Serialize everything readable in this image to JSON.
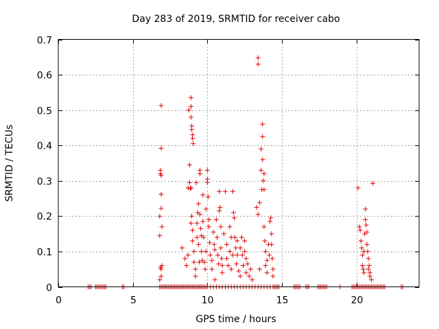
{
  "chart_data": {
    "type": "scatter",
    "title": "Day 283 of 2019, SRMTID for receiver cabo",
    "xlabel": "GPS time / hours",
    "ylabel": "SRMTID / TECUs",
    "xlim": [
      0,
      24.2
    ],
    "ylim": [
      0,
      0.7
    ],
    "xticks": [
      0,
      5,
      10,
      15,
      20
    ],
    "xtick_labels": [
      "0",
      "5",
      "10",
      "15",
      "20"
    ],
    "yticks": [
      0,
      0.1,
      0.2,
      0.3,
      0.4,
      0.5,
      0.6,
      0.7
    ],
    "ytick_labels": [
      "0",
      "0.1",
      "0.2",
      "0.3",
      "0.4",
      "0.5",
      "0.6",
      "0.7"
    ],
    "grid": true,
    "marker": "+",
    "series": [
      {
        "name": "SRMTID",
        "color": "#e00000",
        "points": [
          [
            2.0,
            0
          ],
          [
            2.1,
            0
          ],
          [
            2.2,
            0
          ],
          [
            2.5,
            0
          ],
          [
            2.6,
            0
          ],
          [
            2.7,
            0
          ],
          [
            2.8,
            0
          ],
          [
            2.9,
            0
          ],
          [
            3.0,
            0
          ],
          [
            3.1,
            0
          ],
          [
            3.2,
            0
          ],
          [
            4.3,
            0
          ],
          [
            4.4,
            0
          ],
          [
            6.8,
            0
          ],
          [
            6.9,
            0
          ],
          [
            7.0,
            0
          ],
          [
            7.1,
            0
          ],
          [
            7.2,
            0
          ],
          [
            7.3,
            0
          ],
          [
            7.4,
            0
          ],
          [
            7.5,
            0
          ],
          [
            7.6,
            0
          ],
          [
            7.7,
            0
          ],
          [
            7.8,
            0
          ],
          [
            7.9,
            0
          ],
          [
            8.0,
            0
          ],
          [
            8.1,
            0
          ],
          [
            8.2,
            0
          ],
          [
            8.3,
            0
          ],
          [
            8.4,
            0
          ],
          [
            8.5,
            0
          ],
          [
            8.6,
            0
          ],
          [
            8.7,
            0
          ],
          [
            8.8,
            0
          ],
          [
            8.9,
            0
          ],
          [
            9.0,
            0
          ],
          [
            9.1,
            0
          ],
          [
            9.2,
            0
          ],
          [
            9.3,
            0
          ],
          [
            9.4,
            0
          ],
          [
            9.5,
            0
          ],
          [
            9.6,
            0
          ],
          [
            9.7,
            0
          ],
          [
            9.8,
            0
          ],
          [
            9.9,
            0
          ],
          [
            10.0,
            0
          ],
          [
            10.2,
            0
          ],
          [
            10.4,
            0
          ],
          [
            10.6,
            0
          ],
          [
            10.8,
            0
          ],
          [
            11.0,
            0
          ],
          [
            11.2,
            0
          ],
          [
            11.4,
            0
          ],
          [
            11.6,
            0
          ],
          [
            11.8,
            0
          ],
          [
            12.0,
            0
          ],
          [
            12.2,
            0
          ],
          [
            12.4,
            0
          ],
          [
            12.6,
            0
          ],
          [
            12.8,
            0
          ],
          [
            13.0,
            0
          ],
          [
            13.2,
            0
          ],
          [
            13.4,
            0
          ],
          [
            13.6,
            0
          ],
          [
            13.8,
            0
          ],
          [
            14.0,
            0
          ],
          [
            14.2,
            0
          ],
          [
            14.4,
            0
          ],
          [
            14.5,
            0
          ],
          [
            14.6,
            0
          ],
          [
            14.7,
            0
          ],
          [
            14.8,
            0
          ],
          [
            15.8,
            0
          ],
          [
            15.9,
            0
          ],
          [
            16.0,
            0
          ],
          [
            16.1,
            0
          ],
          [
            16.2,
            0
          ],
          [
            16.6,
            0
          ],
          [
            16.7,
            0
          ],
          [
            16.8,
            0
          ],
          [
            17.4,
            0
          ],
          [
            17.5,
            0
          ],
          [
            17.6,
            0
          ],
          [
            17.7,
            0
          ],
          [
            17.8,
            0
          ],
          [
            17.9,
            0
          ],
          [
            18.0,
            0
          ],
          [
            18.9,
            0
          ],
          [
            19.7,
            0
          ],
          [
            19.8,
            0
          ],
          [
            19.9,
            0
          ],
          [
            20.0,
            0
          ],
          [
            20.1,
            0
          ],
          [
            20.2,
            0
          ],
          [
            20.3,
            0
          ],
          [
            20.4,
            0
          ],
          [
            20.5,
            0
          ],
          [
            20.6,
            0
          ],
          [
            20.7,
            0
          ],
          [
            20.8,
            0
          ],
          [
            20.9,
            0
          ],
          [
            21.0,
            0
          ],
          [
            21.1,
            0
          ],
          [
            21.2,
            0
          ],
          [
            21.3,
            0
          ],
          [
            21.4,
            0
          ],
          [
            21.5,
            0
          ],
          [
            21.6,
            0
          ],
          [
            21.7,
            0
          ],
          [
            21.8,
            0
          ],
          [
            21.9,
            0
          ],
          [
            23.0,
            0
          ],
          [
            23.1,
            0
          ],
          [
            6.8,
            0.145
          ],
          [
            6.8,
            0.2
          ],
          [
            6.85,
            0.33
          ],
          [
            6.85,
            0.32
          ],
          [
            6.9,
            0.315
          ],
          [
            6.9,
            0.513
          ],
          [
            6.9,
            0.392
          ],
          [
            6.9,
            0.262
          ],
          [
            6.9,
            0.222
          ],
          [
            6.95,
            0.17
          ],
          [
            6.9,
            0.05
          ],
          [
            6.85,
            0.055
          ],
          [
            6.9,
            0.03
          ],
          [
            6.8,
            0.02
          ],
          [
            6.95,
            0.06
          ],
          [
            8.3,
            0.11
          ],
          [
            8.5,
            0.08
          ],
          [
            8.6,
            0.06
          ],
          [
            8.7,
            0.09
          ],
          [
            8.7,
            0.28
          ],
          [
            8.75,
            0.5
          ],
          [
            8.8,
            0.345
          ],
          [
            8.8,
            0.295
          ],
          [
            8.85,
            0.278
          ],
          [
            8.9,
            0.535
          ],
          [
            8.9,
            0.51
          ],
          [
            8.9,
            0.48
          ],
          [
            8.95,
            0.455
          ],
          [
            8.95,
            0.445
          ],
          [
            9.0,
            0.43
          ],
          [
            9.0,
            0.42
          ],
          [
            9.05,
            0.405
          ],
          [
            8.9,
            0.28
          ],
          [
            8.95,
            0.2
          ],
          [
            8.9,
            0.18
          ],
          [
            9.0,
            0.16
          ],
          [
            9.0,
            0.13
          ],
          [
            9.1,
            0.1
          ],
          [
            9.1,
            0.07
          ],
          [
            9.2,
            0.05
          ],
          [
            9.2,
            0.03
          ],
          [
            9.25,
            0.295
          ],
          [
            9.3,
            0.18
          ],
          [
            9.3,
            0.14
          ],
          [
            9.35,
            0.21
          ],
          [
            9.4,
            0.235
          ],
          [
            9.4,
            0.12
          ],
          [
            9.45,
            0.07
          ],
          [
            9.5,
            0.33
          ],
          [
            9.5,
            0.32
          ],
          [
            9.5,
            0.205
          ],
          [
            9.55,
            0.165
          ],
          [
            9.6,
            0.145
          ],
          [
            9.6,
            0.1
          ],
          [
            9.65,
            0.075
          ],
          [
            9.7,
            0.26
          ],
          [
            9.7,
            0.185
          ],
          [
            9.75,
            0.14
          ],
          [
            9.8,
            0.07
          ],
          [
            9.85,
            0.05
          ],
          [
            9.9,
            0.22
          ],
          [
            9.9,
            0.1
          ],
          [
            10.0,
            0.33
          ],
          [
            10.0,
            0.305
          ],
          [
            10.0,
            0.295
          ],
          [
            10.05,
            0.255
          ],
          [
            10.1,
            0.19
          ],
          [
            10.1,
            0.17
          ],
          [
            10.15,
            0.125
          ],
          [
            10.2,
            0.09
          ],
          [
            10.3,
            0.075
          ],
          [
            10.3,
            0.05
          ],
          [
            10.4,
            0.155
          ],
          [
            10.45,
            0.12
          ],
          [
            10.5,
            0.105
          ],
          [
            10.5,
            0.02
          ],
          [
            10.6,
            0.19
          ],
          [
            10.65,
            0.14
          ],
          [
            10.7,
            0.09
          ],
          [
            10.75,
            0.065
          ],
          [
            10.8,
            0.215
          ],
          [
            10.8,
            0.27
          ],
          [
            10.85,
            0.225
          ],
          [
            10.9,
            0.17
          ],
          [
            10.9,
            0.11
          ],
          [
            10.95,
            0.08
          ],
          [
            11.0,
            0.06
          ],
          [
            11.0,
            0.04
          ],
          [
            11.1,
            0.15
          ],
          [
            11.2,
            0.27
          ],
          [
            11.3,
            0.12
          ],
          [
            11.3,
            0.08
          ],
          [
            11.4,
            0.06
          ],
          [
            11.5,
            0.1
          ],
          [
            11.5,
            0.17
          ],
          [
            11.6,
            0.14
          ],
          [
            11.6,
            0.05
          ],
          [
            11.7,
            0.27
          ],
          [
            11.7,
            0.09
          ],
          [
            11.75,
            0.21
          ],
          [
            11.8,
            0.195
          ],
          [
            11.85,
            0.14
          ],
          [
            11.9,
            0.11
          ],
          [
            11.95,
            0.065
          ],
          [
            12.0,
            0.13
          ],
          [
            12.0,
            0.09
          ],
          [
            12.1,
            0.045
          ],
          [
            12.2,
            0.11
          ],
          [
            12.2,
            0.03
          ],
          [
            12.3,
            0.14
          ],
          [
            12.35,
            0.09
          ],
          [
            12.4,
            0.06
          ],
          [
            12.5,
            0.13
          ],
          [
            12.5,
            0.1
          ],
          [
            12.6,
            0.08
          ],
          [
            12.6,
            0.04
          ],
          [
            12.7,
            0.065
          ],
          [
            12.8,
            0.03
          ],
          [
            12.9,
            0.05
          ],
          [
            13.0,
            0.02
          ],
          [
            13.3,
            0.225
          ],
          [
            13.4,
            0.648
          ],
          [
            13.4,
            0.63
          ],
          [
            13.4,
            0.205
          ],
          [
            13.5,
            0.238
          ],
          [
            13.5,
            0.05
          ],
          [
            13.6,
            0.39
          ],
          [
            13.6,
            0.33
          ],
          [
            13.65,
            0.275
          ],
          [
            13.7,
            0.46
          ],
          [
            13.7,
            0.425
          ],
          [
            13.7,
            0.36
          ],
          [
            13.75,
            0.3
          ],
          [
            13.8,
            0.32
          ],
          [
            13.8,
            0.275
          ],
          [
            13.8,
            0.17
          ],
          [
            13.85,
            0.13
          ],
          [
            13.9,
            0.1
          ],
          [
            13.9,
            0.06
          ],
          [
            14.0,
            0.075
          ],
          [
            14.0,
            0.04
          ],
          [
            14.1,
            0.12
          ],
          [
            14.15,
            0.09
          ],
          [
            14.2,
            0.185
          ],
          [
            14.25,
            0.195
          ],
          [
            14.3,
            0.15
          ],
          [
            14.3,
            0.12
          ],
          [
            14.35,
            0.08
          ],
          [
            14.4,
            0.05
          ],
          [
            14.4,
            0.03
          ],
          [
            20.1,
            0.28
          ],
          [
            20.2,
            0.17
          ],
          [
            20.25,
            0.16
          ],
          [
            20.3,
            0.13
          ],
          [
            20.35,
            0.11
          ],
          [
            20.4,
            0.09
          ],
          [
            20.4,
            0.06
          ],
          [
            20.45,
            0.05
          ],
          [
            20.5,
            0.1
          ],
          [
            20.5,
            0.04
          ],
          [
            20.55,
            0.15
          ],
          [
            20.6,
            0.22
          ],
          [
            20.6,
            0.19
          ],
          [
            20.65,
            0.175
          ],
          [
            20.7,
            0.155
          ],
          [
            20.7,
            0.12
          ],
          [
            20.75,
            0.1
          ],
          [
            20.8,
            0.08
          ],
          [
            20.8,
            0.05
          ],
          [
            20.85,
            0.06
          ],
          [
            20.9,
            0.04
          ],
          [
            20.9,
            0.03
          ],
          [
            21.0,
            0.02
          ],
          [
            21.1,
            0.293
          ]
        ]
      }
    ]
  }
}
